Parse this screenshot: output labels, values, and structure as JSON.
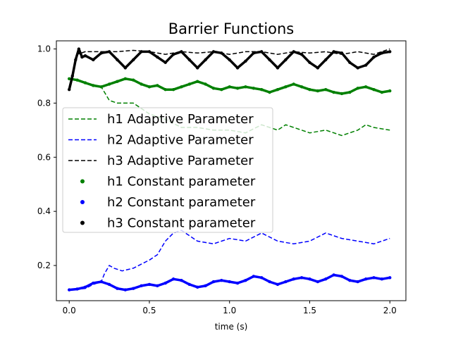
{
  "chart_data": {
    "type": "line",
    "title": "Barrier Functions",
    "xlabel": "time (s)",
    "ylabel": "",
    "xlim": [
      -0.08,
      2.1
    ],
    "ylim": [
      0.07,
      1.03
    ],
    "xticks": [
      0.0,
      0.5,
      1.0,
      1.5,
      2.0
    ],
    "xtick_labels": [
      "0.0",
      "0.5",
      "1.0",
      "1.5",
      "2.0"
    ],
    "yticks": [
      0.2,
      0.4,
      0.6,
      0.8,
      1.0
    ],
    "ytick_labels": [
      "0.2",
      "0.4",
      "0.6",
      "0.8",
      "1.0"
    ],
    "grid": false,
    "legend_position": "center-left",
    "series": [
      {
        "name": "h1 Adaptive Parameter",
        "style": "dashed",
        "color": "#008000",
        "x": [
          0.0,
          0.05,
          0.1,
          0.15,
          0.2,
          0.25,
          0.3,
          0.4,
          0.5,
          0.6,
          0.7,
          0.8,
          0.9,
          1.0,
          1.1,
          1.2,
          1.3,
          1.35,
          1.4,
          1.5,
          1.6,
          1.7,
          1.8,
          1.85,
          1.9,
          2.0
        ],
        "y": [
          0.89,
          0.885,
          0.875,
          0.865,
          0.86,
          0.81,
          0.8,
          0.8,
          0.76,
          0.74,
          0.71,
          0.71,
          0.7,
          0.7,
          0.69,
          0.72,
          0.7,
          0.72,
          0.71,
          0.69,
          0.7,
          0.68,
          0.7,
          0.72,
          0.71,
          0.7
        ]
      },
      {
        "name": "h2 Adaptive Parameter",
        "style": "dashed",
        "color": "#0000ff",
        "x": [
          0.0,
          0.1,
          0.15,
          0.2,
          0.22,
          0.25,
          0.28,
          0.33,
          0.4,
          0.5,
          0.55,
          0.6,
          0.65,
          0.7,
          0.8,
          0.9,
          1.0,
          1.1,
          1.2,
          1.3,
          1.4,
          1.5,
          1.6,
          1.7,
          1.8,
          1.9,
          2.0
        ],
        "y": [
          0.11,
          0.115,
          0.13,
          0.14,
          0.17,
          0.2,
          0.19,
          0.18,
          0.19,
          0.22,
          0.24,
          0.29,
          0.32,
          0.33,
          0.29,
          0.28,
          0.3,
          0.29,
          0.32,
          0.29,
          0.28,
          0.29,
          0.32,
          0.3,
          0.29,
          0.28,
          0.3
        ]
      },
      {
        "name": "h3 Adaptive Parameter",
        "style": "dashed",
        "color": "#000000",
        "x": [
          0.0,
          0.05,
          0.1,
          0.2,
          0.3,
          0.4,
          0.5,
          0.6,
          0.7,
          0.8,
          0.9,
          1.0,
          1.1,
          1.2,
          1.3,
          1.4,
          1.5,
          1.6,
          1.7,
          1.8,
          1.9,
          2.0
        ],
        "y": [
          0.86,
          0.98,
          0.99,
          0.99,
          0.99,
          0.995,
          0.99,
          0.98,
          0.99,
          0.985,
          0.99,
          0.98,
          0.99,
          0.99,
          0.98,
          0.99,
          0.985,
          0.99,
          0.98,
          0.99,
          0.98,
          1.0
        ]
      },
      {
        "name": "h1 Constant parameter",
        "style": "dots",
        "color": "#008000",
        "x": [
          0.0,
          0.05,
          0.1,
          0.15,
          0.2,
          0.25,
          0.3,
          0.35,
          0.4,
          0.45,
          0.5,
          0.55,
          0.6,
          0.65,
          0.7,
          0.75,
          0.8,
          0.85,
          0.9,
          0.95,
          1.0,
          1.05,
          1.1,
          1.15,
          1.2,
          1.25,
          1.3,
          1.35,
          1.4,
          1.45,
          1.5,
          1.55,
          1.6,
          1.65,
          1.7,
          1.75,
          1.8,
          1.85,
          1.9,
          1.95,
          2.0
        ],
        "y": [
          0.89,
          0.885,
          0.875,
          0.865,
          0.86,
          0.87,
          0.88,
          0.89,
          0.885,
          0.87,
          0.86,
          0.865,
          0.85,
          0.85,
          0.86,
          0.87,
          0.88,
          0.87,
          0.855,
          0.85,
          0.86,
          0.855,
          0.86,
          0.855,
          0.85,
          0.84,
          0.85,
          0.86,
          0.87,
          0.86,
          0.85,
          0.845,
          0.85,
          0.84,
          0.835,
          0.84,
          0.855,
          0.86,
          0.85,
          0.84,
          0.845
        ]
      },
      {
        "name": "h2 Constant parameter",
        "style": "dots",
        "color": "#0000ff",
        "x": [
          0.0,
          0.05,
          0.1,
          0.15,
          0.2,
          0.25,
          0.3,
          0.35,
          0.4,
          0.45,
          0.5,
          0.55,
          0.6,
          0.65,
          0.7,
          0.75,
          0.8,
          0.85,
          0.9,
          0.95,
          1.0,
          1.05,
          1.1,
          1.15,
          1.2,
          1.25,
          1.3,
          1.35,
          1.4,
          1.45,
          1.5,
          1.55,
          1.6,
          1.65,
          1.7,
          1.75,
          1.8,
          1.85,
          1.9,
          1.95,
          2.0
        ],
        "y": [
          0.11,
          0.113,
          0.12,
          0.135,
          0.14,
          0.13,
          0.115,
          0.11,
          0.115,
          0.125,
          0.13,
          0.125,
          0.135,
          0.15,
          0.145,
          0.13,
          0.12,
          0.125,
          0.14,
          0.145,
          0.14,
          0.135,
          0.145,
          0.16,
          0.155,
          0.14,
          0.13,
          0.14,
          0.15,
          0.155,
          0.15,
          0.14,
          0.15,
          0.165,
          0.16,
          0.145,
          0.14,
          0.15,
          0.155,
          0.15,
          0.155
        ]
      },
      {
        "name": "h3 Constant parameter",
        "style": "dots",
        "color": "#000000",
        "x": [
          0.0,
          0.02,
          0.04,
          0.06,
          0.08,
          0.1,
          0.15,
          0.2,
          0.25,
          0.3,
          0.35,
          0.4,
          0.45,
          0.5,
          0.55,
          0.6,
          0.65,
          0.7,
          0.75,
          0.8,
          0.85,
          0.9,
          0.95,
          1.0,
          1.05,
          1.1,
          1.15,
          1.2,
          1.25,
          1.3,
          1.35,
          1.4,
          1.45,
          1.5,
          1.55,
          1.6,
          1.65,
          1.7,
          1.75,
          1.8,
          1.85,
          1.9,
          1.95,
          2.0
        ],
        "y": [
          0.85,
          0.9,
          0.96,
          1.0,
          0.97,
          0.975,
          0.96,
          0.985,
          0.99,
          0.96,
          0.93,
          0.96,
          0.99,
          0.99,
          0.97,
          0.95,
          0.98,
          0.99,
          0.96,
          0.93,
          0.96,
          0.99,
          0.985,
          0.96,
          0.93,
          0.955,
          0.985,
          0.99,
          0.96,
          0.93,
          0.96,
          0.99,
          0.98,
          0.95,
          0.93,
          0.96,
          0.99,
          0.985,
          0.95,
          0.93,
          0.94,
          0.97,
          0.985,
          0.99
        ]
      }
    ]
  }
}
